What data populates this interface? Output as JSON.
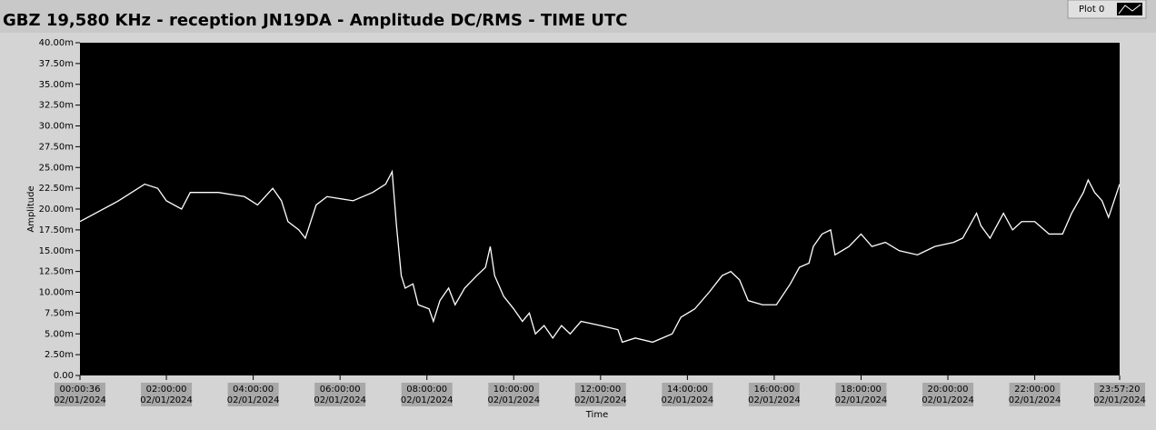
{
  "chart_data": {
    "type": "line",
    "title": "GBZ  19,580 KHz - reception JN19DA -  Amplitude DC/RMS   - TIME UTC",
    "xlabel": "Time",
    "ylabel": "Amplitude",
    "legend": "Plot 0",
    "ylim": [
      0,
      40
    ],
    "yticks": [
      {
        "value": 0,
        "label": "0.00"
      },
      {
        "value": 2.5,
        "label": "2.50m"
      },
      {
        "value": 5,
        "label": "5.00m"
      },
      {
        "value": 7.5,
        "label": "7.50m"
      },
      {
        "value": 10,
        "label": "10.00m"
      },
      {
        "value": 12.5,
        "label": "12.50m"
      },
      {
        "value": 15,
        "label": "15.00m"
      },
      {
        "value": 17.5,
        "label": "17.50m"
      },
      {
        "value": 20,
        "label": "20.00m"
      },
      {
        "value": 22.5,
        "label": "22.50m"
      },
      {
        "value": 25,
        "label": "25.00m"
      },
      {
        "value": 27.5,
        "label": "27.50m"
      },
      {
        "value": 30,
        "label": "30.00m"
      },
      {
        "value": 32.5,
        "label": "32.50m"
      },
      {
        "value": 35,
        "label": "35.00m"
      },
      {
        "value": 37.5,
        "label": "37.50m"
      },
      {
        "value": 40,
        "label": "40.00m"
      }
    ],
    "xlim": [
      0.01,
      23.9556
    ],
    "xticks": [
      {
        "value": 0.01,
        "label": "00:00:36",
        "date": "02/01/2024"
      },
      {
        "value": 2,
        "label": "02:00:00",
        "date": "02/01/2024"
      },
      {
        "value": 4,
        "label": "04:00:00",
        "date": "02/01/2024"
      },
      {
        "value": 6,
        "label": "06:00:00",
        "date": "02/01/2024"
      },
      {
        "value": 8,
        "label": "08:00:00",
        "date": "02/01/2024"
      },
      {
        "value": 10,
        "label": "10:00:00",
        "date": "02/01/2024"
      },
      {
        "value": 12,
        "label": "12:00:00",
        "date": "02/01/2024"
      },
      {
        "value": 14,
        "label": "14:00:00",
        "date": "02/01/2024"
      },
      {
        "value": 16,
        "label": "16:00:00",
        "date": "02/01/2024"
      },
      {
        "value": 18,
        "label": "18:00:00",
        "date": "02/01/2024"
      },
      {
        "value": 20,
        "label": "20:00:00",
        "date": "02/01/2024"
      },
      {
        "value": 22,
        "label": "22:00:00",
        "date": "02/01/2024"
      },
      {
        "value": 23.9556,
        "label": "23:57:20",
        "date": "02/01/2024"
      }
    ],
    "series": [
      {
        "name": "Plot 0",
        "color": "#ffffff",
        "x": [
          0.01,
          0.9,
          1.5,
          1.8,
          2.0,
          2.35,
          2.55,
          3.2,
          3.8,
          4.1,
          4.45,
          4.65,
          4.8,
          5.05,
          5.2,
          5.45,
          5.7,
          6.3,
          6.75,
          7.05,
          7.2,
          7.3,
          7.41,
          7.5,
          7.68,
          7.8,
          8.05,
          8.15,
          8.3,
          8.5,
          8.65,
          8.87,
          9.15,
          9.35,
          9.46,
          9.56,
          9.77,
          10.0,
          10.2,
          10.36,
          10.5,
          10.7,
          10.9,
          11.1,
          11.3,
          11.55,
          12.0,
          12.4,
          12.5,
          12.8,
          13.2,
          13.65,
          13.85,
          14.17,
          14.5,
          14.8,
          15.0,
          15.2,
          15.4,
          15.73,
          16.05,
          16.37,
          16.58,
          16.8,
          16.9,
          17.1,
          17.3,
          17.4,
          17.72,
          18.0,
          18.25,
          18.56,
          18.88,
          19.3,
          19.7,
          20.13,
          20.34,
          20.66,
          20.76,
          20.97,
          21.28,
          21.49,
          21.7,
          22.0,
          22.33,
          22.64,
          22.85,
          23.12,
          23.23,
          23.38,
          23.55,
          23.7,
          23.9556
        ],
        "values": [
          18.5,
          21,
          23,
          22.5,
          21,
          20,
          22,
          22,
          21.5,
          20.5,
          22.5,
          21,
          18.5,
          17.5,
          16.5,
          20.5,
          21.5,
          21,
          22,
          23,
          24.5,
          18,
          12,
          10.5,
          11,
          8.5,
          8,
          6.5,
          9,
          10.5,
          8.5,
          10.5,
          12,
          13,
          15.5,
          12,
          9.5,
          8,
          6.5,
          7.5,
          5,
          6,
          4.5,
          6,
          5,
          6.5,
          6,
          5.5,
          4,
          4.5,
          4,
          5,
          7,
          8,
          10,
          12,
          12.5,
          11.5,
          9,
          8.5,
          8.5,
          11,
          13,
          13.5,
          15.5,
          17,
          17.5,
          14.5,
          15.5,
          17,
          15.5,
          16,
          15,
          14.5,
          15.5,
          16,
          16.5,
          19.5,
          18,
          16.5,
          19.5,
          17.5,
          18.5,
          18.5,
          17,
          17,
          19.5,
          22,
          23.5,
          22,
          21,
          19,
          23
        ]
      }
    ]
  }
}
